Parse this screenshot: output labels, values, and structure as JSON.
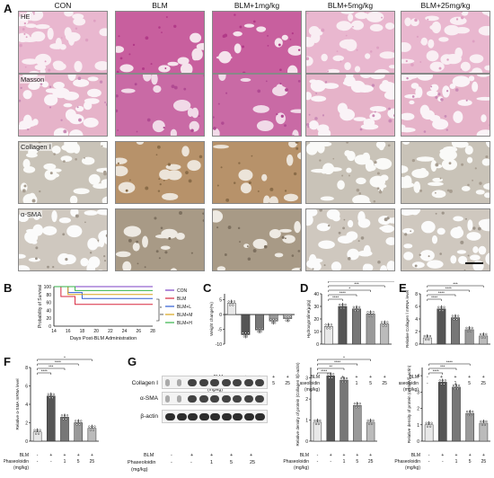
{
  "panel_labels": [
    "A",
    "B",
    "C",
    "D",
    "E",
    "F",
    "G"
  ],
  "histology": {
    "columns": [
      "CON",
      "BLM",
      "BLM+1mg/kg",
      "BLM+5mg/kg",
      "BLM+25mg/kg"
    ],
    "rows": [
      "HE",
      "Masson",
      "Collagen Ⅰ",
      "α-SMA"
    ]
  },
  "treatment_rows": {
    "blm": "BLM",
    "phaseoloidin": "Phaseoloidin",
    "unit": "(mg/kg)",
    "blm_signs": [
      "-",
      "+",
      "+",
      "+",
      "+"
    ],
    "dose_signs": [
      "-",
      "-",
      "1",
      "5",
      "25"
    ]
  },
  "charts": {
    "B": {
      "ylabel": "Probability of Survival",
      "xlabel": "Days Post-BLM Administration",
      "legend": [
        "CON",
        "BLM",
        "BLM+L",
        "BLM+M",
        "BLM+H"
      ],
      "sig": [
        "*",
        "**"
      ]
    },
    "C": {
      "ylabel": "Weight change(%)"
    },
    "D": {
      "ylabel": "Hydroxyproline(μg/g)"
    },
    "E": {
      "ylabel": "Relative Collagen Ⅰ mRNA level"
    },
    "F": {
      "ylabel": "Relative α-SMA mRNA level"
    },
    "G1": {
      "ylabel": "Relative density of protein (Collagen Ⅰ/β-actin)"
    },
    "G2": {
      "ylabel": "Relative density of protein (α-SMA/β-actin)"
    }
  },
  "western_blot": {
    "labels": [
      "Collagen Ⅰ",
      "α-SMA",
      "β-actin"
    ]
  },
  "colors": {
    "CON": "#7b3fc4",
    "BLM": "#d7263d",
    "BLM+L": "#2f5bd3",
    "BLM+M": "#d9a21b",
    "BLM+H": "#36b24a"
  },
  "chart_data": [
    {
      "panel": "B",
      "type": "line",
      "xlabel": "Days Post-BLM Administration",
      "ylabel": "Probability of Survival",
      "x_ticks": [
        14,
        16,
        18,
        20,
        22,
        24,
        26,
        28
      ],
      "y_ticks": [
        0,
        20,
        40,
        60,
        80,
        100
      ],
      "ylim": [
        0,
        100
      ],
      "xlim": [
        14,
        28
      ],
      "series": [
        {
          "name": "CON",
          "x": [
            14,
            28
          ],
          "y": [
            100,
            100
          ]
        },
        {
          "name": "BLM",
          "x": [
            14,
            15,
            17,
            28
          ],
          "y": [
            100,
            75,
            55,
            55
          ]
        },
        {
          "name": "BLM+L",
          "x": [
            14,
            16,
            18,
            28
          ],
          "y": [
            100,
            85,
            70,
            70
          ]
        },
        {
          "name": "BLM+M",
          "x": [
            14,
            16,
            28
          ],
          "y": [
            100,
            80,
            80
          ]
        },
        {
          "name": "BLM+H",
          "x": [
            14,
            17,
            28
          ],
          "y": [
            100,
            90,
            90
          ]
        }
      ]
    },
    {
      "panel": "C",
      "type": "bar",
      "ylabel": "Weight change(%)",
      "y_ticks": [
        -10,
        -5,
        0,
        5
      ],
      "ylim": [
        -10,
        7
      ],
      "values": [
        3.8,
        -6.8,
        -5.2,
        -2.2,
        -1.4
      ],
      "blm_signs": [
        "-",
        "+",
        "+",
        "+",
        "+"
      ],
      "dose_signs": [
        "-",
        "-",
        "1",
        "5",
        "25"
      ]
    },
    {
      "panel": "D",
      "type": "bar",
      "ylabel": "Hydroxyproline(μg/g)",
      "y_ticks": [
        0,
        10,
        20,
        30,
        40
      ],
      "ylim": [
        0,
        40
      ],
      "values": [
        14,
        30,
        28,
        24,
        16
      ],
      "sig": [
        "****",
        "****",
        "*",
        "***",
        "****"
      ]
    },
    {
      "panel": "E",
      "type": "bar",
      "ylabel": "Relative Collagen Ⅰ mRNA level",
      "y_ticks": [
        0,
        2,
        4,
        6,
        8
      ],
      "ylim": [
        0,
        8
      ],
      "values": [
        1,
        5.6,
        4.2,
        2.3,
        1.3
      ],
      "sig": [
        "****",
        "****",
        "****",
        "***"
      ]
    },
    {
      "panel": "F",
      "type": "bar",
      "ylabel": "Relative α-SMA mRNA level",
      "y_ticks": [
        0,
        2,
        4,
        6,
        8
      ],
      "ylim": [
        0,
        8
      ],
      "values": [
        1,
        4.9,
        2.6,
        2.0,
        1.4
      ],
      "sig": [
        "****",
        "***",
        "****",
        "*"
      ]
    },
    {
      "panel": "G1",
      "type": "bar",
      "ylabel": "Relative density of protein (Collagen Ⅰ/β-actin)",
      "y_ticks": [
        0,
        1,
        2,
        3
      ],
      "ylim": [
        0,
        3.5
      ],
      "values": [
        0.9,
        3.1,
        2.9,
        1.7,
        0.9
      ],
      "sig": [
        "****",
        "**",
        "****",
        "*"
      ]
    },
    {
      "panel": "G2",
      "type": "bar",
      "ylabel": "Relative density of protein (α-SMA/β-actin)",
      "y_ticks": [
        0,
        1,
        2,
        3,
        4
      ],
      "ylim": [
        0,
        4.5
      ],
      "values": [
        1,
        3.6,
        3.3,
        1.7,
        1.1
      ],
      "sig": [
        "****",
        "***",
        "****"
      ]
    }
  ]
}
